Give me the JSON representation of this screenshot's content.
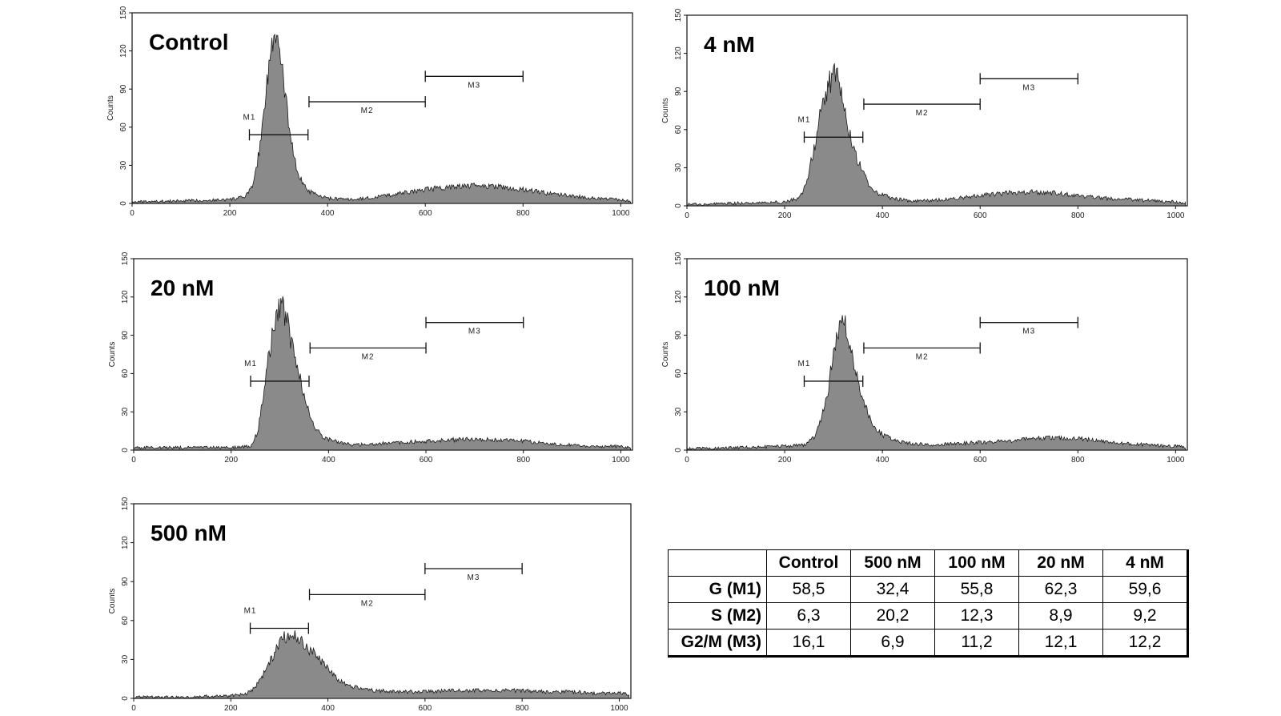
{
  "chart_data": [
    {
      "type": "area",
      "title": "Control",
      "ylabel": "Counts",
      "xlim": [
        0,
        1024
      ],
      "ylim": [
        0,
        150
      ],
      "xticks": [
        0,
        200,
        400,
        600,
        800,
        1000
      ],
      "yticks": [
        0,
        30,
        60,
        90,
        120,
        150
      ],
      "markers": [
        {
          "name": "M1",
          "x_range": [
            240,
            360
          ],
          "y": 54
        },
        {
          "name": "M2",
          "x_range": [
            362,
            600
          ],
          "y": 80
        },
        {
          "name": "M3",
          "x_range": [
            600,
            800
          ],
          "y": 100
        }
      ],
      "series": [
        {
          "x": [
            0,
            100,
            200,
            230,
            245,
            260,
            270,
            280,
            290,
            295,
            300,
            310,
            320,
            330,
            340,
            360,
            380,
            400,
            450,
            500,
            550,
            600,
            650,
            700,
            750,
            800,
            850,
            900,
            950,
            1000,
            1020
          ],
          "values": [
            1,
            2,
            3,
            5,
            12,
            40,
            75,
            110,
            128,
            134,
            122,
            95,
            65,
            40,
            22,
            10,
            6,
            4,
            3,
            5,
            8,
            11,
            13,
            14,
            13,
            11,
            8,
            6,
            4,
            3,
            2
          ]
        }
      ]
    },
    {
      "type": "area",
      "title": "4 nM",
      "ylabel": "Counts",
      "xlim": [
        0,
        1024
      ],
      "ylim": [
        0,
        150
      ],
      "xticks": [
        0,
        200,
        400,
        600,
        800,
        1000
      ],
      "yticks": [
        0,
        30,
        60,
        90,
        120,
        150
      ],
      "markers": [
        {
          "name": "M1",
          "x_range": [
            240,
            360
          ],
          "y": 54
        },
        {
          "name": "M2",
          "x_range": [
            362,
            600
          ],
          "y": 80
        },
        {
          "name": "M3",
          "x_range": [
            600,
            800
          ],
          "y": 100
        }
      ],
      "series": [
        {
          "x": [
            0,
            100,
            200,
            230,
            245,
            260,
            275,
            290,
            300,
            310,
            320,
            335,
            350,
            370,
            390,
            420,
            450,
            500,
            550,
            600,
            650,
            700,
            750,
            800,
            850,
            900,
            950,
            1000,
            1020
          ],
          "values": [
            1,
            2,
            3,
            6,
            18,
            45,
            75,
            95,
            104,
            98,
            80,
            55,
            35,
            18,
            10,
            6,
            4,
            4,
            6,
            8,
            10,
            11,
            10,
            8,
            6,
            5,
            4,
            3,
            2
          ]
        }
      ]
    },
    {
      "type": "area",
      "title": "20 nM",
      "ylabel": "Counts",
      "xlim": [
        0,
        1024
      ],
      "ylim": [
        0,
        150
      ],
      "xticks": [
        0,
        200,
        400,
        600,
        800,
        1000
      ],
      "yticks": [
        0,
        30,
        60,
        90,
        120,
        150
      ],
      "markers": [
        {
          "name": "M1",
          "x_range": [
            240,
            360
          ],
          "y": 54
        },
        {
          "name": "M2",
          "x_range": [
            362,
            600
          ],
          "y": 80
        },
        {
          "name": "M3",
          "x_range": [
            600,
            800
          ],
          "y": 100
        }
      ],
      "series": [
        {
          "x": [
            0,
            100,
            200,
            240,
            255,
            270,
            285,
            295,
            305,
            315,
            325,
            340,
            355,
            370,
            390,
            420,
            450,
            500,
            550,
            600,
            650,
            700,
            750,
            800,
            850,
            900,
            950,
            1000,
            1020
          ],
          "values": [
            2,
            2,
            2,
            3,
            15,
            55,
            90,
            108,
            112,
            100,
            82,
            58,
            35,
            18,
            10,
            6,
            4,
            5,
            6,
            7,
            8,
            9,
            8,
            7,
            5,
            4,
            3,
            3,
            2
          ]
        }
      ]
    },
    {
      "type": "area",
      "title": "100 nM",
      "ylabel": "Counts",
      "xlim": [
        0,
        1024
      ],
      "ylim": [
        0,
        150
      ],
      "xticks": [
        0,
        200,
        400,
        600,
        800,
        1000
      ],
      "yticks": [
        0,
        30,
        60,
        90,
        120,
        150
      ],
      "markers": [
        {
          "name": "M1",
          "x_range": [
            240,
            360
          ],
          "y": 54
        },
        {
          "name": "M2",
          "x_range": [
            362,
            600
          ],
          "y": 80
        },
        {
          "name": "M3",
          "x_range": [
            600,
            800
          ],
          "y": 100
        }
      ],
      "series": [
        {
          "x": [
            0,
            100,
            200,
            240,
            260,
            275,
            290,
            300,
            310,
            318,
            325,
            335,
            350,
            365,
            380,
            400,
            430,
            460,
            500,
            550,
            600,
            650,
            700,
            750,
            800,
            850,
            900,
            950,
            1000,
            1020
          ],
          "values": [
            1,
            2,
            3,
            4,
            10,
            25,
            50,
            75,
            95,
            102,
            95,
            80,
            55,
            35,
            20,
            12,
            7,
            5,
            4,
            5,
            6,
            7,
            9,
            10,
            9,
            7,
            5,
            4,
            3,
            2
          ]
        }
      ]
    },
    {
      "type": "area",
      "title": "500 nM",
      "ylabel": "Counts",
      "xlim": [
        0,
        1024
      ],
      "ylim": [
        0,
        150
      ],
      "xticks": [
        0,
        200,
        400,
        600,
        800,
        1000
      ],
      "yticks": [
        0,
        30,
        60,
        90,
        120,
        150
      ],
      "markers": [
        {
          "name": "M1",
          "x_range": [
            240,
            360
          ],
          "y": 54
        },
        {
          "name": "M2",
          "x_range": [
            362,
            600
          ],
          "y": 80
        },
        {
          "name": "M3",
          "x_range": [
            600,
            800
          ],
          "y": 100
        }
      ],
      "series": [
        {
          "x": [
            0,
            100,
            200,
            230,
            250,
            270,
            290,
            305,
            320,
            335,
            350,
            370,
            390,
            410,
            430,
            460,
            500,
            550,
            600,
            650,
            700,
            750,
            800,
            850,
            900,
            950,
            1000,
            1020
          ],
          "values": [
            1,
            1,
            2,
            3,
            8,
            20,
            35,
            45,
            50,
            48,
            42,
            35,
            27,
            18,
            12,
            8,
            6,
            5,
            5,
            6,
            6,
            6,
            6,
            5,
            5,
            4,
            4,
            3
          ]
        }
      ]
    }
  ],
  "table": {
    "columns": [
      "Control",
      "500 nM",
      "100 nM",
      "20 nM",
      "4 nM"
    ],
    "rows": [
      {
        "label": "G (M1)",
        "values": [
          "58,5",
          "32,4",
          "55,8",
          "62,3",
          "59,6"
        ]
      },
      {
        "label": "S (M2)",
        "values": [
          "6,3",
          "20,2",
          "12,3",
          "8,9",
          "9,2"
        ]
      },
      {
        "label": "G2/M (M3)",
        "values": [
          "16,1",
          "6,9",
          "11,2",
          "12,1",
          "12,2"
        ]
      }
    ]
  }
}
